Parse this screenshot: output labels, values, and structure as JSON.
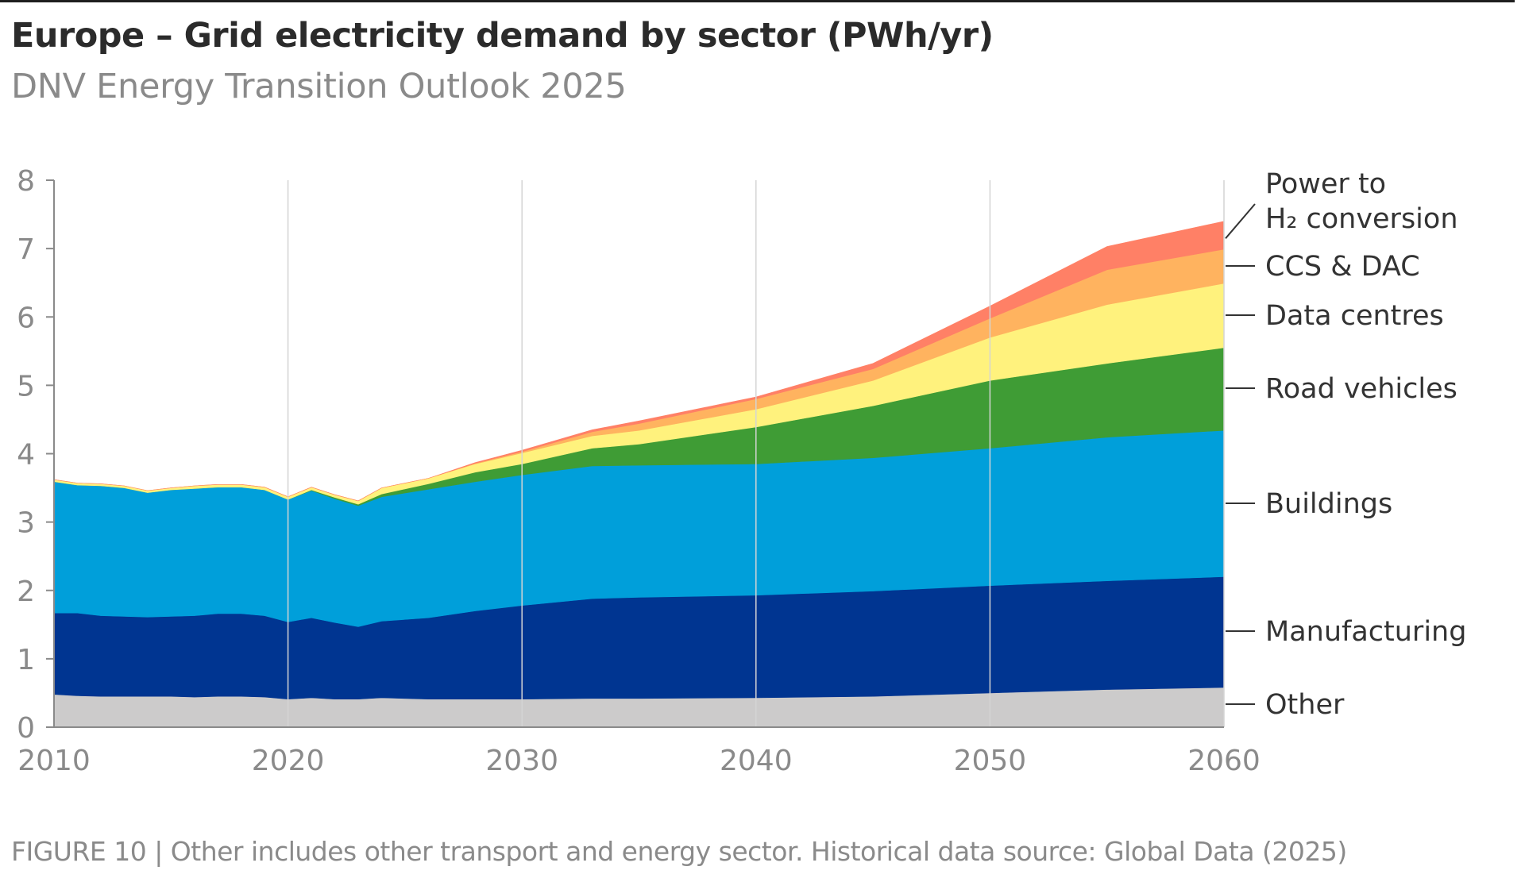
{
  "header": {
    "title": "Europe – Grid electricity demand by sector (PWh/yr)",
    "subtitle": "DNV Energy Transition Outlook 2025"
  },
  "footer": {
    "caption": "FIGURE 10 | Other includes other transport and energy sector. Historical data source: Global Data (2025)"
  },
  "chart_data": {
    "type": "area",
    "stacked": true,
    "title": "Europe – Grid electricity demand by sector (PWh/yr)",
    "subtitle": "DNV Energy Transition Outlook 2025",
    "xlabel": "",
    "ylabel": "PWh/yr",
    "xlim": [
      2010,
      2060
    ],
    "ylim": [
      0,
      8
    ],
    "xticks": [
      "2010",
      "2020",
      "2030",
      "2040",
      "2050",
      "2060"
    ],
    "yticks": [
      "0",
      "1",
      "2",
      "3",
      "4",
      "5",
      "6",
      "7",
      "8"
    ],
    "grid": "vertical lines at decade ticks",
    "legend": "inline labels at right end of series",
    "x": [
      2010,
      2011,
      2012,
      2013,
      2014,
      2015,
      2016,
      2017,
      2018,
      2019,
      2020,
      2021,
      2022,
      2023,
      2024,
      2026,
      2028,
      2030,
      2033,
      2035,
      2040,
      2045,
      2050,
      2055,
      2060
    ],
    "series": [
      {
        "name": "Other",
        "color": "#cccbcb",
        "values": [
          0.48,
          0.46,
          0.45,
          0.45,
          0.45,
          0.45,
          0.44,
          0.45,
          0.45,
          0.44,
          0.41,
          0.43,
          0.41,
          0.41,
          0.43,
          0.41,
          0.41,
          0.41,
          0.42,
          0.42,
          0.43,
          0.45,
          0.5,
          0.55,
          0.58
        ]
      },
      {
        "name": "Manufacturing",
        "color": "#003591",
        "values": [
          1.19,
          1.21,
          1.18,
          1.17,
          1.16,
          1.17,
          1.19,
          1.21,
          1.21,
          1.19,
          1.13,
          1.17,
          1.12,
          1.06,
          1.12,
          1.19,
          1.29,
          1.37,
          1.46,
          1.48,
          1.5,
          1.54,
          1.57,
          1.59,
          1.62
        ]
      },
      {
        "name": "Buildings",
        "color": "#009fda",
        "values": [
          1.92,
          1.87,
          1.9,
          1.88,
          1.82,
          1.85,
          1.86,
          1.85,
          1.85,
          1.84,
          1.79,
          1.86,
          1.81,
          1.77,
          1.82,
          1.88,
          1.89,
          1.91,
          1.94,
          1.93,
          1.92,
          1.95,
          2.01,
          2.1,
          2.14
        ]
      },
      {
        "name": "Road vehicles",
        "color": "#3f9c35",
        "values": [
          0.0,
          0.0,
          0.0,
          0.0,
          0.0,
          0.0,
          0.0,
          0.0,
          0.0,
          0.0,
          0.0,
          0.01,
          0.02,
          0.02,
          0.04,
          0.08,
          0.14,
          0.16,
          0.26,
          0.31,
          0.54,
          0.76,
          0.99,
          1.08,
          1.21
        ]
      },
      {
        "name": "Data centres",
        "color": "#fff27d",
        "values": [
          0.03,
          0.03,
          0.03,
          0.03,
          0.03,
          0.03,
          0.04,
          0.04,
          0.04,
          0.04,
          0.04,
          0.04,
          0.04,
          0.05,
          0.09,
          0.08,
          0.12,
          0.16,
          0.18,
          0.2,
          0.26,
          0.37,
          0.63,
          0.86,
          0.94
        ]
      },
      {
        "name": "CCS & DAC",
        "color": "#ffb35f",
        "values": [
          0.0,
          0.0,
          0.0,
          0.0,
          0.0,
          0.0,
          0.0,
          0.0,
          0.0,
          0.0,
          0.0,
          0.0,
          0.0,
          0.0,
          0.0,
          0.0,
          0.01,
          0.02,
          0.06,
          0.1,
          0.15,
          0.17,
          0.28,
          0.51,
          0.5
        ]
      },
      {
        "name": "Power to H₂ conversion",
        "color": "#ff8066",
        "values": [
          0.0,
          0.0,
          0.0,
          0.0,
          0.0,
          0.0,
          0.0,
          0.0,
          0.0,
          0.0,
          0.0,
          0.0,
          0.0,
          0.0,
          0.0,
          0.0,
          0.01,
          0.02,
          0.03,
          0.04,
          0.03,
          0.08,
          0.18,
          0.34,
          0.41
        ]
      }
    ],
    "labels": [
      {
        "series": "Power to H₂ conversion",
        "lines": [
          "Power to",
          "H₂ conversion"
        ]
      },
      {
        "series": "CCS & DAC",
        "lines": [
          "CCS & DAC"
        ]
      },
      {
        "series": "Data centres",
        "lines": [
          "Data centres"
        ]
      },
      {
        "series": "Road vehicles",
        "lines": [
          "Road vehicles"
        ]
      },
      {
        "series": "Buildings",
        "lines": [
          "Buildings"
        ]
      },
      {
        "series": "Manufacturing",
        "lines": [
          "Manufacturing"
        ]
      },
      {
        "series": "Other",
        "lines": [
          "Other"
        ]
      }
    ]
  }
}
